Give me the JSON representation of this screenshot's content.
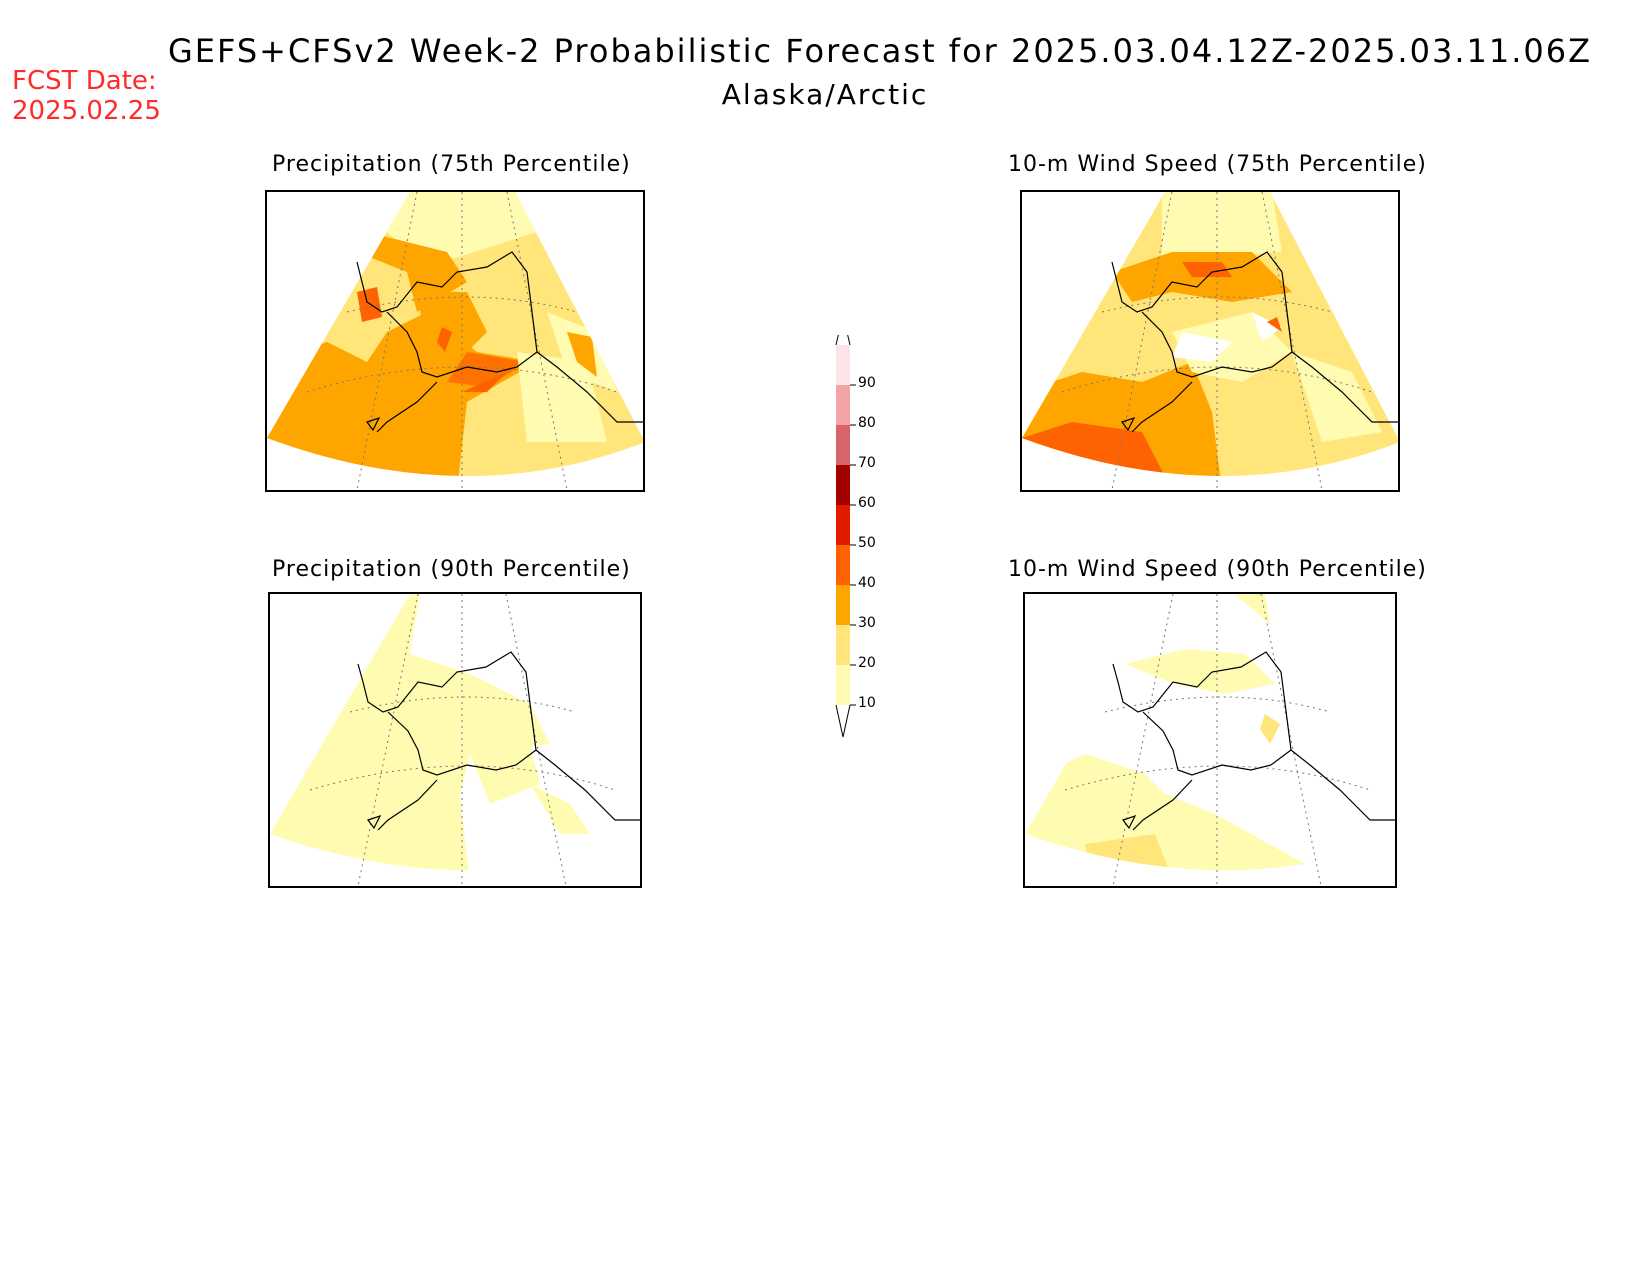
{
  "header": {
    "title": "GEFS+CFSv2 Week-2 Probabilistic Forecast for 2025.03.04.12Z-2025.03.11.06Z",
    "subtitle": "Alaska/Arctic",
    "fcst_label": "FCST Date:",
    "fcst_date": "2025.02.25"
  },
  "panels": [
    {
      "title": "Precipitation (75th Percentile)"
    },
    {
      "title": "10-m Wind Speed (75th Percentile)"
    },
    {
      "title": "Precipitation (90th Percentile)"
    },
    {
      "title": "10-m Wind Speed (90th Percentile)"
    }
  ],
  "colorbar": {
    "levels": [
      "10",
      "20",
      "30",
      "40",
      "50",
      "60",
      "70",
      "80",
      "90"
    ],
    "colors": [
      "#fffbb0",
      "#ffe57a",
      "#ffa500",
      "#ff6200",
      "#e01b00",
      "#a50000",
      "#d8646a",
      "#f2a3a8",
      "#fde4e6"
    ]
  }
}
